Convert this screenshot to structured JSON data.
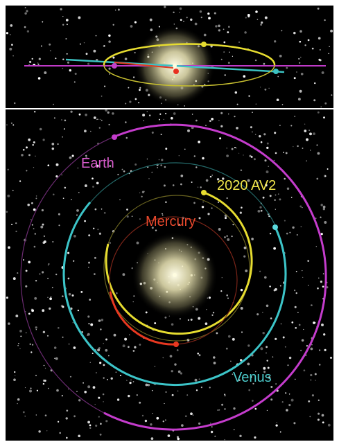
{
  "labels": {
    "earth": "Earth",
    "asteroid": "2020 AV2",
    "mercury": "Mercury",
    "venus": "Venus"
  }
}
